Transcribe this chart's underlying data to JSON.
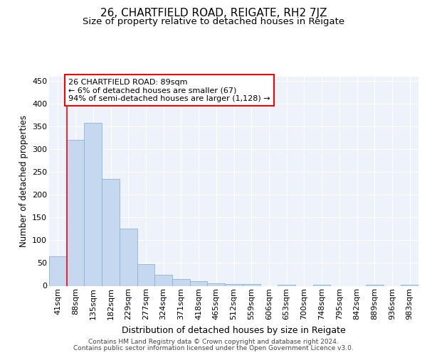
{
  "title": "26, CHARTFIELD ROAD, REIGATE, RH2 7JZ",
  "subtitle": "Size of property relative to detached houses in Reigate",
  "xlabel": "Distribution of detached houses by size in Reigate",
  "ylabel": "Number of detached properties",
  "footer_line1": "Contains HM Land Registry data © Crown copyright and database right 2024.",
  "footer_line2": "Contains public sector information licensed under the Open Government Licence v3.0.",
  "bins": [
    "41sqm",
    "88sqm",
    "135sqm",
    "182sqm",
    "229sqm",
    "277sqm",
    "324sqm",
    "371sqm",
    "418sqm",
    "465sqm",
    "512sqm",
    "559sqm",
    "606sqm",
    "653sqm",
    "700sqm",
    "748sqm",
    "795sqm",
    "842sqm",
    "889sqm",
    "936sqm",
    "983sqm"
  ],
  "values": [
    65,
    320,
    358,
    235,
    125,
    48,
    24,
    15,
    10,
    6,
    4,
    4,
    0,
    3,
    0,
    3,
    0,
    0,
    3,
    0,
    3
  ],
  "bar_color": "#c5d8f0",
  "bar_edge_color": "#8ab4d8",
  "annotation_text": "26 CHARTFIELD ROAD: 89sqm\n← 6% of detached houses are smaller (67)\n94% of semi-detached houses are larger (1,128) →",
  "ylim": [
    0,
    460
  ],
  "yticks": [
    0,
    50,
    100,
    150,
    200,
    250,
    300,
    350,
    400,
    450
  ],
  "background_color": "#eef2fb",
  "grid_color": "#ffffff",
  "title_fontsize": 11,
  "subtitle_fontsize": 9.5,
  "xlabel_fontsize": 9,
  "ylabel_fontsize": 8.5,
  "tick_fontsize": 8,
  "footer_fontsize": 6.5
}
